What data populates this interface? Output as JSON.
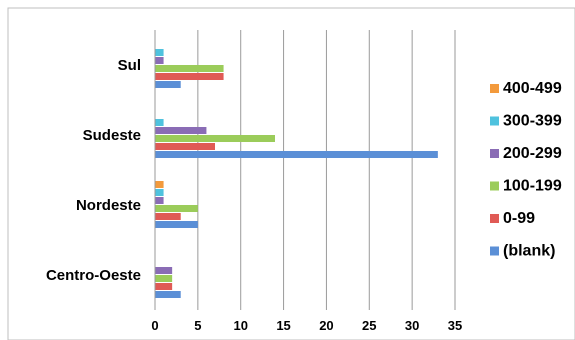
{
  "chart_data": {
    "type": "bar",
    "orientation": "horizontal",
    "categories": [
      "Sul",
      "Sudeste",
      "Nordeste",
      "Centro-Oeste"
    ],
    "series": [
      {
        "name": "(blank)",
        "color": "#5b8fd6",
        "values": [
          3,
          33,
          5,
          3
        ]
      },
      {
        "name": "0-99",
        "color": "#e05a55",
        "values": [
          8,
          7,
          3,
          2
        ]
      },
      {
        "name": "100-199",
        "color": "#9bcc5a",
        "values": [
          8,
          14,
          5,
          2
        ]
      },
      {
        "name": "200-299",
        "color": "#8a6cb5",
        "values": [
          1,
          6,
          1,
          2
        ]
      },
      {
        "name": "300-399",
        "color": "#4fc2de",
        "values": [
          1,
          1,
          1,
          0
        ]
      },
      {
        "name": "400-499",
        "color": "#f39a3c",
        "values": [
          0,
          0,
          1,
          0
        ]
      }
    ],
    "xlim": [
      0,
      35
    ],
    "xticks": [
      "0",
      "5",
      "10",
      "15",
      "20",
      "25",
      "30",
      "35"
    ],
    "grid": true,
    "legend_position": "right"
  }
}
